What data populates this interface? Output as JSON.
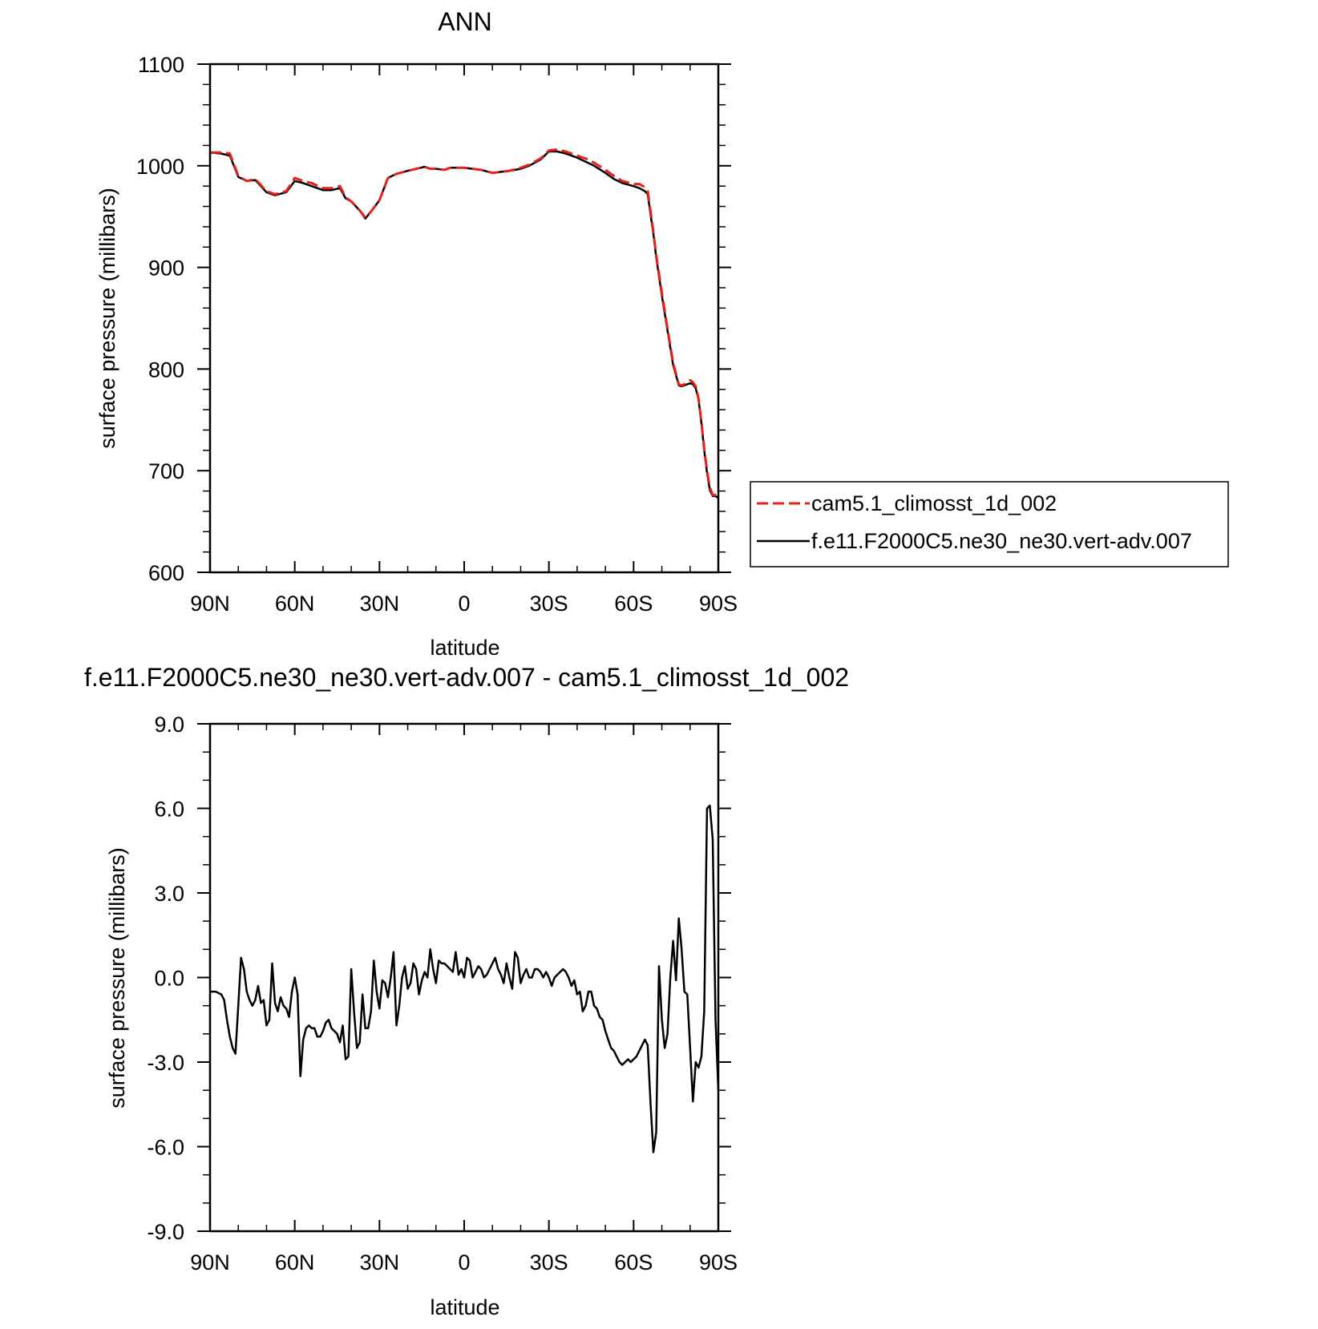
{
  "chart_data": [
    {
      "type": "line",
      "title": "ANN",
      "xlabel": "latitude",
      "ylabel": "surface pressure (millibars)",
      "xlim": [
        90,
        -90
      ],
      "ylim": [
        600,
        1100
      ],
      "x_tick_values": [
        90,
        60,
        30,
        0,
        -30,
        -60,
        -90
      ],
      "x_tick_labels": [
        "90N",
        "60N",
        "30N",
        "0",
        "30S",
        "60S",
        "90S"
      ],
      "y_tick_values": [
        600,
        700,
        800,
        900,
        1000,
        1100
      ],
      "y_tick_labels": [
        "600",
        "700",
        "800",
        "900",
        "1000",
        "1100"
      ],
      "grid": false,
      "legend_position": "right",
      "colors": {
        "cam": "#e8201c",
        "fe11": "#000000"
      },
      "series": [
        {
          "name": "cam5.1_climosst_1d_002",
          "style": "dashed",
          "color": "#e8201c",
          "x": [
            90,
            86,
            83,
            80,
            77,
            74,
            70,
            67,
            63,
            60,
            57,
            54,
            50,
            47,
            44,
            42,
            40,
            37,
            35,
            33,
            30,
            27,
            24,
            20,
            17,
            14,
            12,
            10,
            7,
            5,
            3,
            0,
            -3,
            -6,
            -10,
            -13,
            -16,
            -20,
            -23,
            -27,
            -30,
            -33,
            -36,
            -40,
            -43,
            -46,
            -50,
            -53,
            -56,
            -60,
            -62,
            -64,
            -65,
            -66,
            -67,
            -68,
            -70,
            -72,
            -74,
            -76,
            -77,
            -78,
            -80,
            -81,
            -82,
            -83,
            -84,
            -85,
            -86,
            -87,
            -88,
            -89,
            -90
          ],
          "values": [
            1013,
            1013,
            1012,
            990,
            985,
            987,
            975,
            972,
            975,
            988,
            985,
            983,
            978,
            978,
            980,
            969,
            965,
            956,
            949,
            955,
            966,
            988,
            992,
            995,
            997,
            999,
            997,
            997,
            996,
            998,
            998,
            998,
            997,
            996,
            993,
            994,
            995,
            998,
            1001,
            1007,
            1015,
            1016,
            1014,
            1010,
            1007,
            1003,
            996,
            990,
            985,
            982,
            982,
            979,
            975,
            955,
            935,
            912,
            875,
            840,
            806,
            785,
            784,
            785,
            789,
            787,
            783,
            771,
            748,
            722,
            700,
            684,
            676,
            676,
            677
          ]
        },
        {
          "name": "f.e11.F2000C5.ne30_ne30.vert-adv.007",
          "style": "solid",
          "color": "#000000",
          "x": [
            90,
            86,
            83,
            80,
            77,
            74,
            70,
            67,
            63,
            60,
            57,
            54,
            50,
            47,
            44,
            42,
            40,
            37,
            35,
            33,
            30,
            27,
            24,
            20,
            17,
            14,
            12,
            10,
            7,
            5,
            3,
            0,
            -3,
            -6,
            -10,
            -13,
            -16,
            -20,
            -23,
            -27,
            -30,
            -33,
            -36,
            -40,
            -43,
            -46,
            -50,
            -53,
            -56,
            -60,
            -62,
            -64,
            -65,
            -66,
            -67,
            -68,
            -70,
            -72,
            -74,
            -76,
            -77,
            -78,
            -80,
            -81,
            -82,
            -83,
            -84,
            -85,
            -86,
            -87,
            -88,
            -89,
            -90
          ],
          "values": [
            1013,
            1012,
            1010,
            989,
            985,
            986,
            974,
            971,
            974,
            985,
            983,
            980,
            976,
            976,
            978,
            968,
            965,
            956,
            948,
            955,
            966,
            988,
            992,
            995,
            997,
            999,
            997,
            997,
            996,
            998,
            998,
            998,
            997,
            996,
            993,
            994,
            995,
            997,
            1000,
            1006,
            1014,
            1014,
            1012,
            1008,
            1004,
            1000,
            993,
            987,
            983,
            980,
            978,
            975,
            972,
            952,
            933,
            910,
            872,
            838,
            804,
            784,
            783,
            784,
            786,
            785,
            781,
            770,
            747,
            720,
            698,
            681,
            675,
            675,
            673
          ]
        }
      ]
    },
    {
      "type": "line",
      "title": "f.e11.F2000C5.ne30_ne30.vert-adv.007 - cam5.1_climosst_1d_002",
      "xlabel": "latitude",
      "ylabel": "surface pressure (millibars)",
      "xlim": [
        90,
        -90
      ],
      "ylim": [
        -9,
        9
      ],
      "x_tick_values": [
        90,
        60,
        30,
        0,
        -30,
        -60,
        -90
      ],
      "x_tick_labels": [
        "90N",
        "60N",
        "30N",
        "0",
        "30S",
        "60S",
        "90S"
      ],
      "y_tick_values": [
        -9,
        -6,
        -3,
        0,
        3,
        6,
        9
      ],
      "y_tick_labels": [
        "-9.0",
        "-6.0",
        "-3.0",
        "0.0",
        "3.0",
        "6.0",
        "9.0"
      ],
      "grid": false,
      "series": [
        {
          "style": "solid",
          "color": "#000000",
          "x": [
            90,
            88,
            86,
            85,
            84,
            83,
            82,
            81,
            80,
            79,
            78,
            77,
            76,
            75,
            74,
            73,
            72,
            71,
            70,
            69,
            68,
            67,
            66,
            65,
            64,
            63,
            62,
            61,
            60,
            59,
            58,
            57,
            56,
            55,
            54,
            53,
            52,
            51,
            50,
            49,
            48,
            47,
            46,
            45,
            44,
            43,
            42,
            41,
            40,
            39,
            38,
            37,
            36,
            35,
            34,
            33,
            32,
            31,
            30,
            29,
            28,
            27,
            26,
            25,
            24,
            23,
            22,
            21,
            20,
            19,
            18,
            17,
            16,
            15,
            14,
            13,
            12,
            11,
            10,
            9,
            8,
            7,
            6,
            5,
            4,
            3,
            2,
            1,
            0,
            -1,
            -2,
            -3,
            -4,
            -5,
            -6,
            -7,
            -8,
            -9,
            -10,
            -11,
            -12,
            -13,
            -14,
            -15,
            -16,
            -17,
            -18,
            -19,
            -20,
            -21,
            -22,
            -23,
            -24,
            -25,
            -26,
            -27,
            -28,
            -29,
            -30,
            -31,
            -32,
            -33,
            -34,
            -35,
            -36,
            -37,
            -38,
            -39,
            -40,
            -41,
            -42,
            -43,
            -44,
            -45,
            -46,
            -47,
            -48,
            -49,
            -50,
            -51,
            -52,
            -53,
            -54,
            -55,
            -56,
            -57,
            -58,
            -59,
            -60,
            -61,
            -62,
            -63,
            -64,
            -65,
            -66,
            -67,
            -68,
            -69,
            -70,
            -71,
            -72,
            -73,
            -74,
            -75,
            -76,
            -77,
            -78,
            -79,
            -80,
            -81,
            -82,
            -83,
            -84,
            -85,
            -86,
            -87,
            -88,
            -89,
            -90
          ],
          "values": [
            -0.5,
            -0.5,
            -0.6,
            -0.8,
            -1.5,
            -2.1,
            -2.5,
            -2.7,
            -1.0,
            0.7,
            0.3,
            -0.5,
            -0.8,
            -1.0,
            -0.8,
            -0.3,
            -0.9,
            -0.8,
            -1.7,
            -1.5,
            0.5,
            -0.9,
            -1.2,
            -0.7,
            -1.0,
            -1.1,
            -1.4,
            -0.5,
            0.0,
            -0.6,
            -3.5,
            -2.2,
            -1.8,
            -1.7,
            -1.8,
            -1.8,
            -2.1,
            -2.1,
            -1.9,
            -1.6,
            -1.5,
            -1.8,
            -1.9,
            -2.0,
            -2.3,
            -1.7,
            -2.9,
            -2.8,
            0.3,
            -1.2,
            -2.5,
            -2.3,
            -0.6,
            -1.8,
            -1.8,
            -1.2,
            0.6,
            -0.5,
            -1.1,
            -0.1,
            -0.2,
            -0.7,
            0.0,
            0.9,
            -1.7,
            -1.0,
            0.0,
            0.4,
            -0.4,
            -0.2,
            0.5,
            0.3,
            -0.6,
            -0.1,
            0.2,
            0.0,
            1.0,
            0.3,
            -0.2,
            0.6,
            0.5,
            0.5,
            0.4,
            0.3,
            0.2,
            0.9,
            0.1,
            0.3,
            0.0,
            0.7,
            0.6,
            0.0,
            0.2,
            0.4,
            0.3,
            0.0,
            0.1,
            0.3,
            0.5,
            0.7,
            0.3,
            0.1,
            -0.2,
            0.5,
            0.0,
            -0.4,
            0.9,
            0.7,
            -0.2,
            0.1,
            0.3,
            0.0,
            0.0,
            0.3,
            0.3,
            0.2,
            0.0,
            0.2,
            0.0,
            -0.3,
            0.0,
            0.1,
            0.2,
            0.3,
            0.2,
            0.0,
            -0.3,
            -0.1,
            -0.6,
            -0.5,
            -1.2,
            -1.0,
            -0.5,
            -0.5,
            -1.0,
            -1.1,
            -1.4,
            -1.5,
            -1.9,
            -2.2,
            -2.5,
            -2.6,
            -2.8,
            -3.0,
            -3.1,
            -3.0,
            -2.9,
            -3.0,
            -2.9,
            -2.8,
            -2.6,
            -2.4,
            -2.2,
            -2.4,
            -4.5,
            -6.2,
            -5.5,
            0.4,
            -1.5,
            -2.5,
            -2.0,
            0.0,
            1.3,
            -0.1,
            2.1,
            1.0,
            -0.5,
            -0.6,
            -2.5,
            -4.4,
            -3.0,
            -3.2,
            -2.8,
            -1.2,
            6.0,
            6.1,
            4.9,
            -1.5,
            -4.0
          ]
        }
      ]
    }
  ]
}
